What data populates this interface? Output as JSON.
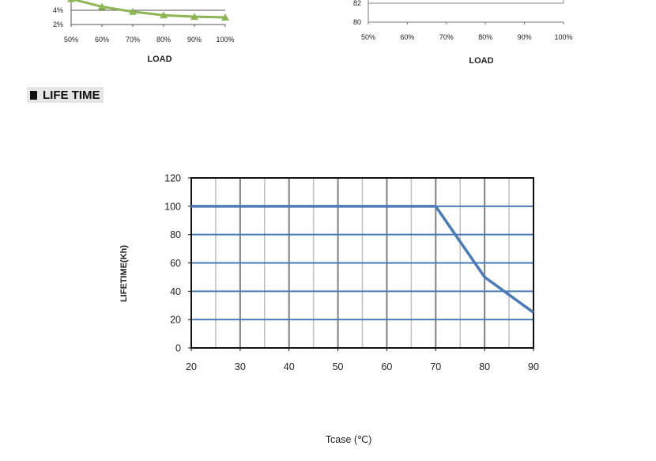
{
  "section": {
    "heading": "LIFE TIME"
  },
  "chart_data": [
    {
      "type": "line",
      "x": [
        "50%",
        "60%",
        "70%",
        "80%",
        "90%",
        "100%"
      ],
      "series": [
        {
          "values": [
            5.6,
            4.5,
            3.8,
            3.3,
            3.1,
            3.0
          ]
        }
      ],
      "yticks": [
        "4%",
        "2%"
      ],
      "ylim": [
        2,
        6
      ],
      "xlabel": "LOAD",
      "ylabel": "",
      "colors": {
        "line": "#8db554",
        "marker": "#8db554",
        "axis": "#555555"
      },
      "cropped_top": true
    },
    {
      "type": "line",
      "x": [
        "50%",
        "60%",
        "70%",
        "80%",
        "90%",
        "100%"
      ],
      "series": [],
      "yticks": [
        "82",
        "80"
      ],
      "ylim": [
        80,
        84
      ],
      "xlabel": "LOAD",
      "ylabel": "",
      "colors": {
        "axis": "#777777"
      },
      "cropped_top": true
    },
    {
      "type": "line",
      "x": [
        20,
        70,
        80,
        90
      ],
      "series": [
        {
          "values": [
            100,
            100,
            50,
            25
          ]
        }
      ],
      "xticks": [
        "20",
        "30",
        "40",
        "50",
        "60",
        "70",
        "80",
        "90"
      ],
      "yticks": [
        "120",
        "100",
        "80",
        "60",
        "40",
        "20",
        "0"
      ],
      "xlim": [
        20,
        90
      ],
      "ylim": [
        0,
        120
      ],
      "xlabel": "Tcase (℃)",
      "ylabel": "LIFETIME(Kh)",
      "grid": true,
      "colors": {
        "line": "#4a7ab8",
        "hgrid": "#4a7ab8",
        "vgrid_major": "#808080",
        "vgrid_minor": "#c0c0c0",
        "frame": "#111111"
      }
    }
  ]
}
